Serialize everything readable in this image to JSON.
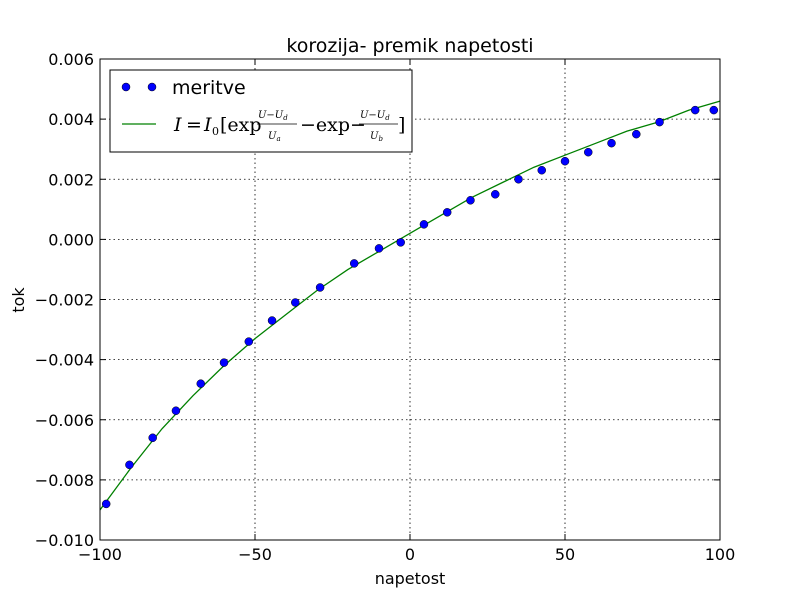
{
  "chart_data": {
    "type": "scatter",
    "title": "korozija- premik napetosti",
    "xlabel": "napetost",
    "ylabel": "tok",
    "xlim": [
      -100,
      100
    ],
    "ylim": [
      -0.01,
      0.006
    ],
    "xticks": [
      -100,
      -50,
      0,
      50,
      100
    ],
    "xtick_labels": [
      "−100",
      "−50",
      "0",
      "50",
      "100"
    ],
    "yticks": [
      -0.01,
      -0.008,
      -0.006,
      -0.004,
      -0.002,
      0.0,
      0.002,
      0.004,
      0.006
    ],
    "ytick_labels": [
      "−0.010",
      "−0.008",
      "−0.006",
      "−0.004",
      "−0.002",
      "0.000",
      "0.002",
      "0.004",
      "0.006"
    ],
    "grid": true,
    "legend_position": "top-left",
    "series": [
      {
        "name": "meritve",
        "kind": "markers",
        "color": "#0000ff",
        "x": [
          -98,
          -90.5,
          -83,
          -75.5,
          -67.5,
          -60,
          -52,
          -44.5,
          -37,
          -29,
          -18,
          -10,
          -3,
          4.5,
          12,
          19.5,
          27.5,
          35,
          42.5,
          50,
          57.5,
          65,
          73,
          80.5,
          92,
          98
        ],
        "y": [
          -0.0088,
          -0.0075,
          -0.0066,
          -0.0057,
          -0.0048,
          -0.0041,
          -0.0034,
          -0.0027,
          -0.0021,
          -0.0016,
          -0.0008,
          -0.0003,
          -0.0001,
          0.0005,
          0.0009,
          0.0013,
          0.0015,
          0.002,
          0.0023,
          0.0026,
          0.0029,
          0.0032,
          0.0035,
          0.0039,
          0.0043,
          0.0043
        ]
      },
      {
        "name": "I=I₀[exp(U−U_d)/U_a − exp−(U−U_d)/U_b]",
        "kind": "line",
        "color": "#008000",
        "x": [
          -100,
          -90,
          -80,
          -70,
          -60,
          -50,
          -40,
          -30,
          -20,
          -10,
          0,
          10,
          20,
          30,
          40,
          50,
          60,
          70,
          80,
          90,
          100
        ],
        "y": [
          -0.009,
          -0.0076,
          -0.0063,
          -0.0052,
          -0.0042,
          -0.0033,
          -0.0025,
          -0.0017,
          -0.001,
          -0.0004,
          0.0002,
          0.0008,
          0.0014,
          0.0019,
          0.0024,
          0.0028,
          0.0032,
          0.0036,
          0.0039,
          0.0043,
          0.0046
        ]
      }
    ]
  }
}
